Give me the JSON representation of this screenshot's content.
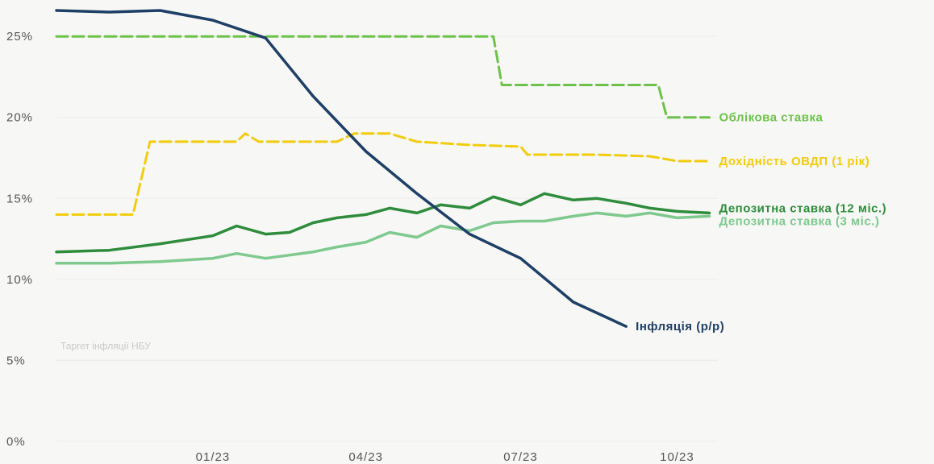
{
  "chart_data": {
    "type": "line",
    "title": "",
    "xlabel": "",
    "ylabel": "",
    "ylim": [
      0,
      26.5
    ],
    "x_tick_labels": [
      "01/23",
      "04/23",
      "07/23",
      "10/23"
    ],
    "y_tick_labels": [
      "0%",
      "5%",
      "10%",
      "15%",
      "20%",
      "25%"
    ],
    "y_ticks": [
      0,
      5,
      10,
      15,
      20,
      25
    ],
    "target_line": {
      "label": "Таргет інфляції НБУ",
      "value": 5
    },
    "series": [
      {
        "name": "Облікова ставка",
        "color": "#6cc24a",
        "style": "dashed",
        "x": [
          "2022-10",
          "2023-06-15",
          "2023-06-20",
          "2023-07-25",
          "2023-07-30",
          "2023-09-20",
          "2023-09-25",
          "2023-10-20"
        ],
        "values": [
          25,
          25,
          22,
          22,
          22,
          22,
          20,
          20
        ]
      },
      {
        "name": "Дохідність ОВДП (1 рік)",
        "color": "#f2cc0c",
        "style": "dashed",
        "x": [
          "2022-10",
          "2022-11-15",
          "2022-11-25",
          "2023-01-01",
          "2023-01-15",
          "2023-01-20",
          "2023-01-28",
          "2023-02-15",
          "2023-03-15",
          "2023-03-25",
          "2023-04-15",
          "2023-05-01",
          "2023-06-01",
          "2023-07-01",
          "2023-07-05",
          "2023-08-15",
          "2023-09-15",
          "2023-10-01",
          "2023-10-20"
        ],
        "values": [
          14,
          14,
          18.5,
          18.5,
          18.5,
          19,
          18.5,
          18.5,
          18.5,
          19,
          19,
          18.5,
          18.3,
          18.2,
          17.7,
          17.7,
          17.6,
          17.3,
          17.3
        ]
      },
      {
        "name": "Депозитна ставка (12 міс.)",
        "color": "#2f8c3c",
        "style": "solid",
        "x": [
          "2022-10",
          "2022-11",
          "2022-12",
          "2023-01-01",
          "2023-01-15",
          "2023-02-01",
          "2023-02-15",
          "2023-03-01",
          "2023-03-15",
          "2023-04-01",
          "2023-04-15",
          "2023-05-01",
          "2023-05-15",
          "2023-06-01",
          "2023-06-15",
          "2023-07-01",
          "2023-07-15",
          "2023-08-01",
          "2023-08-15",
          "2023-09-01",
          "2023-09-15",
          "2023-10-01",
          "2023-10-20"
        ],
        "values": [
          11.7,
          11.8,
          12.2,
          12.7,
          13.3,
          12.8,
          12.9,
          13.5,
          13.8,
          14.0,
          14.4,
          14.1,
          14.6,
          14.4,
          15.1,
          14.6,
          15.3,
          14.9,
          15.0,
          14.7,
          14.4,
          14.2,
          14.1
        ]
      },
      {
        "name": "Депозитна ставка (3 міс.)",
        "color": "#7fc98f",
        "style": "solid",
        "x": [
          "2022-10",
          "2022-11",
          "2022-12",
          "2023-01-01",
          "2023-01-15",
          "2023-02-01",
          "2023-02-15",
          "2023-03-01",
          "2023-03-15",
          "2023-04-01",
          "2023-04-15",
          "2023-05-01",
          "2023-05-15",
          "2023-06-01",
          "2023-06-15",
          "2023-07-01",
          "2023-07-15",
          "2023-08-01",
          "2023-08-15",
          "2023-09-01",
          "2023-09-15",
          "2023-10-01",
          "2023-10-20"
        ],
        "values": [
          11.0,
          11.0,
          11.1,
          11.3,
          11.6,
          11.3,
          11.5,
          11.7,
          12.0,
          12.3,
          12.9,
          12.6,
          13.3,
          13.0,
          13.5,
          13.6,
          13.6,
          13.9,
          14.1,
          13.9,
          14.1,
          13.8,
          13.9
        ]
      },
      {
        "name": "Інфляція (р/р)",
        "color": "#1e3f66",
        "style": "solid",
        "x": [
          "2022-10",
          "2022-11",
          "2022-12",
          "2023-01",
          "2023-02",
          "2023-03",
          "2023-04",
          "2023-05",
          "2023-06",
          "2023-07",
          "2023-08",
          "2023-09"
        ],
        "values": [
          26.6,
          26.5,
          26.6,
          26.0,
          24.9,
          21.3,
          17.9,
          15.3,
          12.8,
          11.3,
          8.6,
          7.1
        ]
      }
    ]
  }
}
